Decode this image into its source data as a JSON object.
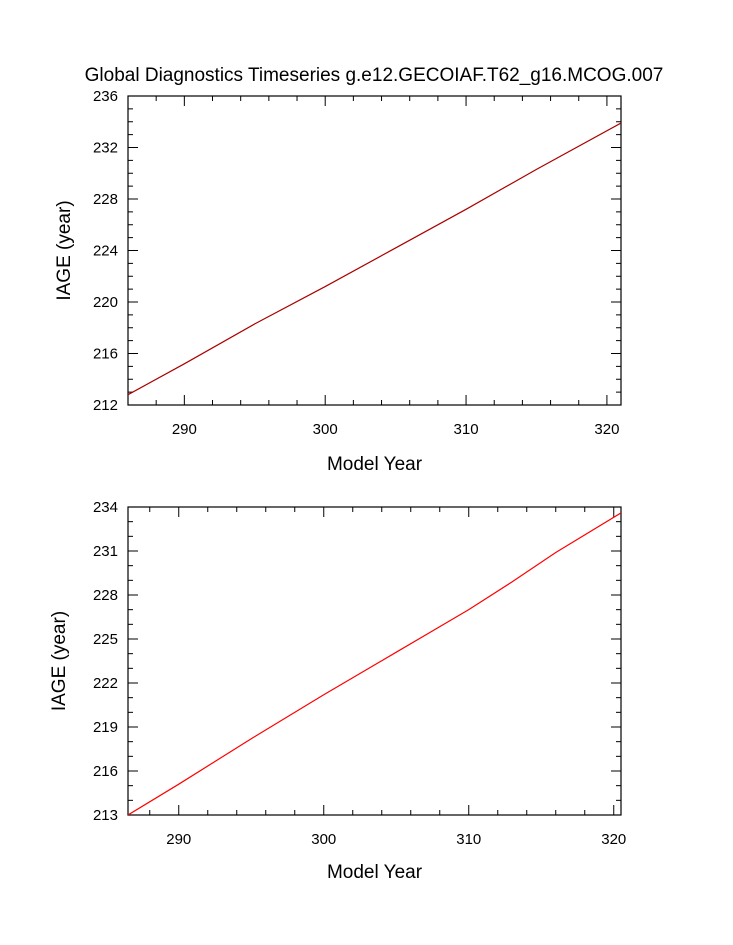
{
  "title": "Global Diagnostics Timeseries g.e12.GECOIAF.T62_g16.MCOG.007",
  "chart_data": [
    {
      "type": "line",
      "xlabel": "Model Year",
      "ylabel": "IAGE (year)",
      "xlim": [
        286,
        321
      ],
      "ylim": [
        212,
        236
      ],
      "xticks": [
        290,
        300,
        310,
        320
      ],
      "yticks": [
        212,
        216,
        220,
        224,
        228,
        232,
        236
      ],
      "xtick_labels": [
        "290",
        "300",
        "310",
        "320"
      ],
      "ytick_labels": [
        "212",
        "216",
        "220",
        "224",
        "228",
        "232",
        "236"
      ],
      "x_minor_step": 2,
      "y_minor_step": 1,
      "series": [
        {
          "color": "#aa0000",
          "x": [
            286,
            290,
            295,
            300,
            305,
            310,
            315,
            321
          ],
          "y": [
            212.8,
            215.2,
            218.3,
            221.2,
            224.2,
            227.2,
            230.3,
            233.9
          ]
        }
      ]
    },
    {
      "type": "line",
      "xlabel": "Model Year",
      "ylabel": "IAGE (year)",
      "xlim": [
        286.5,
        320.5
      ],
      "ylim": [
        213,
        234
      ],
      "xticks": [
        290,
        300,
        310,
        320
      ],
      "yticks": [
        213,
        216,
        219,
        222,
        225,
        228,
        231,
        234
      ],
      "xtick_labels": [
        "290",
        "300",
        "310",
        "320"
      ],
      "ytick_labels": [
        "213",
        "216",
        "219",
        "222",
        "225",
        "228",
        "231",
        "234"
      ],
      "x_minor_step": 2,
      "y_minor_step": 1,
      "series": [
        {
          "color": "#ff0000",
          "x": [
            286.5,
            290,
            295,
            300,
            305,
            310,
            313,
            316,
            320.5
          ],
          "y": [
            213.0,
            215.1,
            218.2,
            221.2,
            224.1,
            227.0,
            228.9,
            230.9,
            233.6
          ]
        }
      ]
    }
  ]
}
